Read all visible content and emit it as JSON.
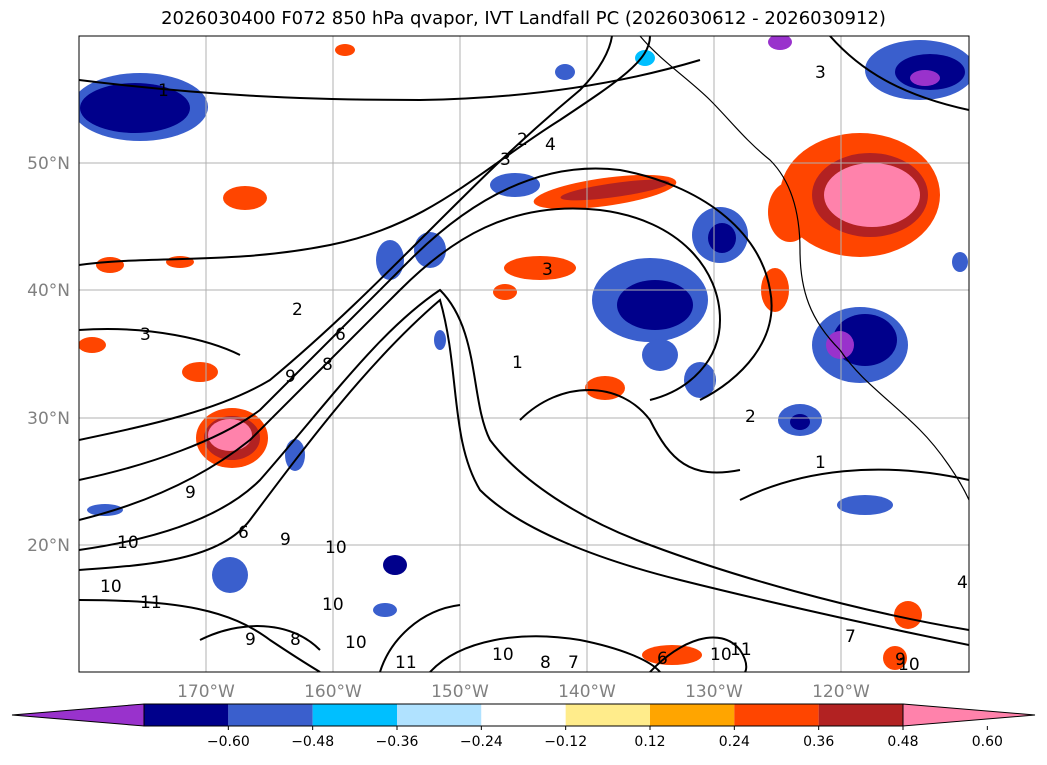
{
  "title": "2026030400 F072 850 hPa qvapor, IVT Landfall PC (2026030612 - 2026030912)",
  "longitude_labels": [
    "170°W",
    "160°W",
    "150°W",
    "140°W",
    "130°W",
    "120°W"
  ],
  "latitude_labels": [
    "50°N",
    "40°N",
    "30°N",
    "20°N"
  ],
  "colorbar": {
    "colors": [
      "#9932cc",
      "#00008b",
      "#3a5fcd",
      "#00bfff",
      "#b0e2ff",
      "#ffffff",
      "#ffec8b",
      "#ffa500",
      "#ff4500",
      "#b22222",
      "#ff82ab"
    ],
    "tick_labels": [
      "−0.60",
      "−0.48",
      "−0.36",
      "−0.24",
      "−0.12",
      "0.12",
      "0.24",
      "0.36",
      "0.48",
      "0.60"
    ]
  },
  "contour_labels": [
    "1",
    "2",
    "3",
    "4",
    "9",
    "8",
    "6",
    "3",
    "2",
    "3",
    "1",
    "2",
    "1",
    "3",
    "9",
    "6",
    "9",
    "10",
    "10",
    "10",
    "11",
    "10",
    "9",
    "8",
    "10",
    "11",
    "10",
    "7",
    "6",
    "8",
    "10",
    "11",
    "7",
    "9",
    "10",
    "4"
  ]
}
